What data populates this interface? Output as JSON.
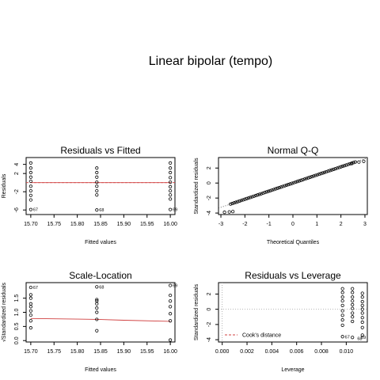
{
  "page": {
    "title": "Linear bipolar (tempo)"
  },
  "chart_data": [
    {
      "type": "scatter",
      "title": "Residuals vs Fitted",
      "xlabel": "Fitted values",
      "ylabel": "Residuals",
      "xlim": [
        15.69,
        16.01
      ],
      "ylim": [
        -7,
        5.5
      ],
      "xticks": [
        15.7,
        15.75,
        15.8,
        15.85,
        15.9,
        15.95,
        16.0
      ],
      "xtick_labels": [
        "15.70",
        "15.75",
        "15.80",
        "15.85",
        "15.90",
        "15.95",
        "16.00"
      ],
      "yticks": [
        -6,
        -2,
        2,
        4
      ],
      "ytick_labels": [
        "-6",
        "-2",
        "2",
        "4"
      ],
      "reference_line": {
        "y": 0,
        "color": "#d04040",
        "style": "dashed"
      },
      "points": [
        {
          "x": 15.7,
          "y": 4.3
        },
        {
          "x": 15.7,
          "y": 3.2
        },
        {
          "x": 15.7,
          "y": 2.2
        },
        {
          "x": 15.7,
          "y": 1.2
        },
        {
          "x": 15.7,
          "y": 0.3
        },
        {
          "x": 15.7,
          "y": -0.8
        },
        {
          "x": 15.7,
          "y": -1.8
        },
        {
          "x": 15.7,
          "y": -2.8
        },
        {
          "x": 15.7,
          "y": -3.8
        },
        {
          "x": 15.7,
          "y": -5.9
        },
        {
          "x": 15.842,
          "y": 3.2
        },
        {
          "x": 15.842,
          "y": 2.2
        },
        {
          "x": 15.842,
          "y": 1.2
        },
        {
          "x": 15.842,
          "y": 0.1
        },
        {
          "x": 15.842,
          "y": -0.8
        },
        {
          "x": 15.842,
          "y": -1.8
        },
        {
          "x": 15.842,
          "y": -2.7
        },
        {
          "x": 15.842,
          "y": -6.0
        },
        {
          "x": 16.0,
          "y": 4.3
        },
        {
          "x": 16.0,
          "y": 3.2
        },
        {
          "x": 16.0,
          "y": 2.2
        },
        {
          "x": 16.0,
          "y": 1.1
        },
        {
          "x": 16.0,
          "y": 0.1
        },
        {
          "x": 16.0,
          "y": -0.9
        },
        {
          "x": 16.0,
          "y": -1.8
        },
        {
          "x": 16.0,
          "y": -2.7
        },
        {
          "x": 16.0,
          "y": -3.6
        },
        {
          "x": 16.0,
          "y": -5.9
        }
      ],
      "smooth_line": {
        "color": "#d04040",
        "points": [
          [
            15.7,
            0
          ],
          [
            16.0,
            0
          ]
        ]
      },
      "annotations": [
        {
          "text": "67",
          "x": 15.7,
          "y": -5.9
        },
        {
          "text": "68",
          "x": 15.842,
          "y": -6.0
        },
        {
          "text": "69",
          "x": 16.0,
          "y": -5.9
        }
      ]
    },
    {
      "type": "scatter",
      "title": "Normal Q-Q",
      "xlabel": "Theoretical Quantiles",
      "ylabel": "Standardized residuals",
      "xlim": [
        -3.1,
        3.1
      ],
      "ylim": [
        -4.2,
        3.4
      ],
      "xticks": [
        -3,
        -2,
        -1,
        0,
        1,
        2,
        3
      ],
      "xtick_labels": [
        "-3",
        "-2",
        "-1",
        "0",
        "1",
        "2",
        "3"
      ],
      "yticks": [
        -4,
        -2,
        0,
        2
      ],
      "ytick_labels": [
        "-4",
        "-2",
        "0",
        "2"
      ],
      "reference_line": {
        "type": "qq",
        "slope": 1.08,
        "intercept": 0,
        "style": "dotted"
      },
      "qq_points": {
        "n": 70,
        "x_range": [
          -2.6,
          2.6
        ],
        "slope": 1.08
      },
      "points": [
        {
          "x": -2.85,
          "y": -3.9
        },
        {
          "x": -2.65,
          "y": -3.85
        },
        {
          "x": -2.5,
          "y": -3.8
        },
        {
          "x": 2.45,
          "y": 2.6
        },
        {
          "x": 2.75,
          "y": 2.8
        },
        {
          "x": 2.95,
          "y": 2.9
        }
      ]
    },
    {
      "type": "scatter",
      "title": "Scale-Location",
      "xlabel": "Fitted values",
      "ylabel": "√Standardized residuals",
      "xlim": [
        15.69,
        16.01
      ],
      "ylim": [
        -0.05,
        2.05
      ],
      "xticks": [
        15.7,
        15.75,
        15.8,
        15.85,
        15.9,
        15.95,
        16.0
      ],
      "xtick_labels": [
        "15.70",
        "15.75",
        "15.80",
        "15.85",
        "15.90",
        "15.95",
        "16.00"
      ],
      "yticks": [
        0.0,
        0.5,
        1.0,
        1.5
      ],
      "ytick_labels": [
        "0.0",
        "0.5",
        "1.0",
        "1.5"
      ],
      "points": [
        {
          "x": 15.7,
          "y": 1.88
        },
        {
          "x": 15.7,
          "y": 1.62
        },
        {
          "x": 15.7,
          "y": 1.5
        },
        {
          "x": 15.7,
          "y": 1.3
        },
        {
          "x": 15.7,
          "y": 1.2
        },
        {
          "x": 15.7,
          "y": 1.05
        },
        {
          "x": 15.7,
          "y": 0.9
        },
        {
          "x": 15.7,
          "y": 0.7
        },
        {
          "x": 15.7,
          "y": 0.45
        },
        {
          "x": 15.842,
          "y": 1.9
        },
        {
          "x": 15.842,
          "y": 1.45
        },
        {
          "x": 15.842,
          "y": 1.4
        },
        {
          "x": 15.842,
          "y": 1.3
        },
        {
          "x": 15.842,
          "y": 1.15
        },
        {
          "x": 15.842,
          "y": 1.0
        },
        {
          "x": 15.842,
          "y": 0.75
        },
        {
          "x": 15.842,
          "y": 0.35
        },
        {
          "x": 16.0,
          "y": 1.95
        },
        {
          "x": 16.0,
          "y": 1.6
        },
        {
          "x": 16.0,
          "y": 1.4
        },
        {
          "x": 16.0,
          "y": 1.2
        },
        {
          "x": 16.0,
          "y": 0.95
        },
        {
          "x": 16.0,
          "y": 0.7
        },
        {
          "x": 16.0,
          "y": 0.02
        }
      ],
      "smooth_line": {
        "color": "#d04040",
        "points": [
          [
            15.7,
            0.78
          ],
          [
            15.8,
            0.76
          ],
          [
            15.842,
            0.75
          ],
          [
            15.9,
            0.72
          ],
          [
            16.0,
            0.68
          ]
        ]
      },
      "annotations": [
        {
          "text": "67",
          "x": 15.7,
          "y": 1.88
        },
        {
          "text": "68",
          "x": 15.842,
          "y": 1.9
        },
        {
          "text": "69",
          "x": 16.0,
          "y": 1.95
        }
      ]
    },
    {
      "type": "scatter",
      "title": "Residuals vs Leverage",
      "xlabel": "Leverage",
      "ylabel": "Standardized residuals",
      "xlim": [
        -0.0003,
        0.0117
      ],
      "ylim": [
        -4.3,
        3.5
      ],
      "xticks": [
        0.0,
        0.002,
        0.004,
        0.006,
        0.008,
        0.01
      ],
      "xtick_labels": [
        "0.000",
        "0.002",
        "0.004",
        "0.006",
        "0.008",
        "0.010"
      ],
      "yticks": [
        -4,
        -2,
        0,
        2
      ],
      "ytick_labels": [
        "-4",
        "-2",
        "0",
        "2"
      ],
      "reference_line": {
        "y": 0,
        "color": "#a0a0a0",
        "style": "dotted"
      },
      "points": [
        {
          "x": 0.0097,
          "y": 2.7
        },
        {
          "x": 0.0097,
          "y": 2.2
        },
        {
          "x": 0.0097,
          "y": 1.6
        },
        {
          "x": 0.0097,
          "y": 1.1
        },
        {
          "x": 0.0097,
          "y": 0.5
        },
        {
          "x": 0.0097,
          "y": -0.2
        },
        {
          "x": 0.0097,
          "y": -0.8
        },
        {
          "x": 0.0097,
          "y": -1.4
        },
        {
          "x": 0.0097,
          "y": -2.1
        },
        {
          "x": 0.0097,
          "y": -3.6
        },
        {
          "x": 0.0105,
          "y": 2.7
        },
        {
          "x": 0.0105,
          "y": 2.2
        },
        {
          "x": 0.0105,
          "y": 1.6
        },
        {
          "x": 0.0105,
          "y": 1.1
        },
        {
          "x": 0.0105,
          "y": 0.6
        },
        {
          "x": 0.0105,
          "y": 0.1
        },
        {
          "x": 0.0105,
          "y": -0.5
        },
        {
          "x": 0.0105,
          "y": -1.0
        },
        {
          "x": 0.0105,
          "y": -1.6
        },
        {
          "x": 0.0105,
          "y": -3.7
        },
        {
          "x": 0.0113,
          "y": 2.1
        },
        {
          "x": 0.0113,
          "y": 1.6
        },
        {
          "x": 0.0113,
          "y": 1.0
        },
        {
          "x": 0.0113,
          "y": 0.5
        },
        {
          "x": 0.0113,
          "y": 0.0
        },
        {
          "x": 0.0113,
          "y": -0.5
        },
        {
          "x": 0.0113,
          "y": -1.1
        },
        {
          "x": 0.0113,
          "y": -1.7
        },
        {
          "x": 0.0113,
          "y": -2.4
        },
        {
          "x": 0.0113,
          "y": -3.4
        }
      ],
      "annotations": [
        {
          "text": "67",
          "x": 0.0097,
          "y": -3.6
        },
        {
          "text": "68",
          "x": 0.0107,
          "y": -3.85
        },
        {
          "text": "69",
          "x": 0.011,
          "y": -3.7
        }
      ],
      "legend": {
        "label": "Cook's distance",
        "placement": "bottom-left",
        "color": "#d04040"
      }
    }
  ]
}
